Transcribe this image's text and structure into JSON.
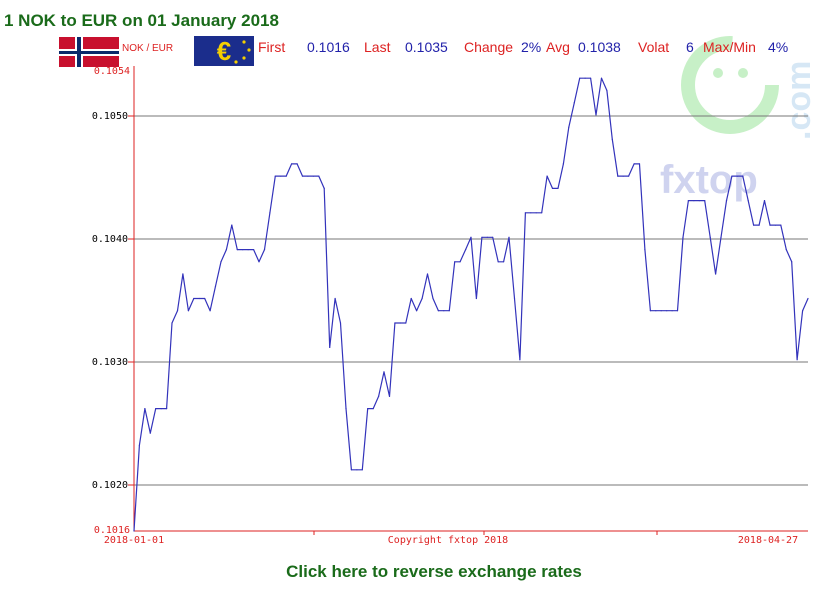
{
  "page": {
    "title": "1 NOK to EUR on 01 January 2018",
    "reverse_link": "Click here to reverse exchange rates"
  },
  "legend": {
    "pair": "NOK / EUR",
    "first_label": "First",
    "first_value": "0.1016",
    "last_label": "Last",
    "last_value": "0.1035",
    "change_label": "Change",
    "change_value": "2%",
    "avg_label": "Avg",
    "avg_value": "0.1038",
    "volat_label": "Volat",
    "volat_value": "6",
    "maxmin_label": "Max/Min",
    "maxmin_value": "4%"
  },
  "watermark": {
    "brand": "fxtop",
    "domain": ".com"
  },
  "colors": {
    "line": "#3333bb",
    "axis": "#dd2222",
    "grid": "#777777",
    "title": "#1a6b1a",
    "legend_label": "#dd2222",
    "legend_value": "#2222aa",
    "watermark": "#c7f0c7"
  },
  "chart_data": {
    "type": "line",
    "title": "1 NOK to EUR on 01 January 2018",
    "xlabel": "",
    "ylabel": "",
    "ylim": [
      0.1016,
      0.1054
    ],
    "y_ticks": [
      "0.1054",
      "0.1050",
      "0.1040",
      "0.1030",
      "0.1020",
      "0.1016"
    ],
    "x_tick_labels": [
      "2018-01-01",
      "Copyright fxtop 2018",
      "2018-04-27"
    ],
    "grid": true,
    "series": [
      {
        "values": [
          0.1016,
          0.1023,
          0.1026,
          0.1024,
          0.1026,
          0.1026,
          0.1026,
          0.1033,
          0.1034,
          0.1037,
          0.1034,
          0.1035,
          0.1035,
          0.1035,
          0.1034,
          0.1036,
          0.1038,
          0.1039,
          0.1041,
          0.1039,
          0.1039,
          0.1039,
          0.1039,
          0.1038,
          0.1039,
          0.1042,
          0.1045,
          0.1045,
          0.1045,
          0.1046,
          0.1046,
          0.1045,
          0.1045,
          0.1045,
          0.1045,
          0.1044,
          0.1031,
          0.1035,
          0.1033,
          0.1026,
          0.1021,
          0.1021,
          0.1021,
          0.1026,
          0.1026,
          0.1027,
          0.1029,
          0.1027,
          0.1033,
          0.1033,
          0.1033,
          0.1035,
          0.1034,
          0.1035,
          0.1037,
          0.1035,
          0.1034,
          0.1034,
          0.1034,
          0.1038,
          0.1038,
          0.1039,
          0.104,
          0.1035,
          0.104,
          0.104,
          0.104,
          0.1038,
          0.1038,
          0.104,
          0.1035,
          0.103,
          0.1042,
          0.1042,
          0.1042,
          0.1042,
          0.1045,
          0.1044,
          0.1044,
          0.1046,
          0.1049,
          0.1051,
          0.1053,
          0.1053,
          0.1053,
          0.105,
          0.1053,
          0.1052,
          0.1048,
          0.1045,
          0.1045,
          0.1045,
          0.1046,
          0.1046,
          0.1039,
          0.1034,
          0.1034,
          0.1034,
          0.1034,
          0.1034,
          0.1034,
          0.104,
          0.1043,
          0.1043,
          0.1043,
          0.1043,
          0.104,
          0.1037,
          0.104,
          0.1043,
          0.1045,
          0.1045,
          0.1045,
          0.1043,
          0.1041,
          0.1041,
          0.1043,
          0.1041,
          0.1041,
          0.1041,
          0.1039,
          0.1038,
          0.103,
          0.1034,
          0.1035
        ]
      }
    ]
  }
}
